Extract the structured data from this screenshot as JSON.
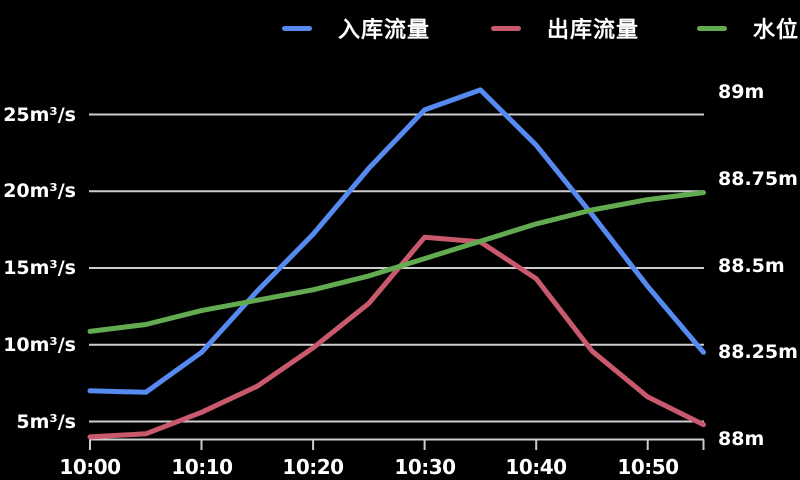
{
  "page": {
    "background": "#000000",
    "text_color": "#ffffff",
    "grid_color": "#cdcdcd"
  },
  "legend": {
    "items": [
      {
        "key": "inflow",
        "label": "入库流量",
        "color": "#568AF0"
      },
      {
        "key": "outflow",
        "label": "出库流量",
        "color": "#C95A6E"
      },
      {
        "key": "water-level",
        "label": "水位",
        "color": "#62AB50"
      }
    ]
  },
  "chart_data": {
    "type": "line",
    "title": "",
    "xlabel": "",
    "ylabel_left": "m³/s",
    "ylabel_right": "m",
    "grid": true,
    "legend_position": "top",
    "x": [
      "10:00",
      "10:05",
      "10:10",
      "10:15",
      "10:20",
      "10:25",
      "10:30",
      "10:35",
      "10:40",
      "10:45",
      "10:50",
      "10:55"
    ],
    "x_ticks": [
      {
        "index": 0,
        "label": "10:00"
      },
      {
        "index": 2,
        "label": "10:10"
      },
      {
        "index": 4,
        "label": "10:20"
      },
      {
        "index": 6,
        "label": "10:30"
      },
      {
        "index": 8,
        "label": "10:40"
      },
      {
        "index": 10,
        "label": "10:50"
      },
      {
        "index": 11,
        "label": ""
      }
    ],
    "left_axis": {
      "range": [
        3.9,
        27.2
      ],
      "ticks": [
        {
          "value": 5,
          "label": "5m³/s"
        },
        {
          "value": 10,
          "label": "10m³/s"
        },
        {
          "value": 15,
          "label": "15m³/s"
        },
        {
          "value": 20,
          "label": "20m³/s"
        },
        {
          "value": 25,
          "label": "25m³/s"
        }
      ]
    },
    "right_axis": {
      "range": [
        88,
        89.01
      ],
      "ticks": [
        {
          "value": 88,
          "label": "88m"
        },
        {
          "value": 88.25,
          "label": "88.25m"
        },
        {
          "value": 88.5,
          "label": "88.5m"
        },
        {
          "value": 88.75,
          "label": "88.75m"
        },
        {
          "value": 89,
          "label": "89m"
        }
      ]
    },
    "series": [
      {
        "key": "inflow",
        "name": "入库流量",
        "axis": "left",
        "color": "#568AF0",
        "values": [
          7,
          6.9,
          9.5,
          13.5,
          17.2,
          21.5,
          25.3,
          26.6,
          23,
          18.5,
          13.8,
          9.5
        ]
      },
      {
        "key": "outflow",
        "name": "出库流量",
        "axis": "left",
        "color": "#C95A6E",
        "values": [
          4,
          4.2,
          5.6,
          7.3,
          9.8,
          12.7,
          17,
          16.7,
          14.3,
          9.6,
          6.6,
          4.8
        ]
      },
      {
        "key": "water-level",
        "name": "水位",
        "axis": "right",
        "color": "#62AB50",
        "values": [
          88.31,
          88.33,
          88.37,
          88.4,
          88.43,
          88.47,
          88.52,
          88.57,
          88.62,
          88.66,
          88.69,
          88.71
        ]
      }
    ]
  }
}
